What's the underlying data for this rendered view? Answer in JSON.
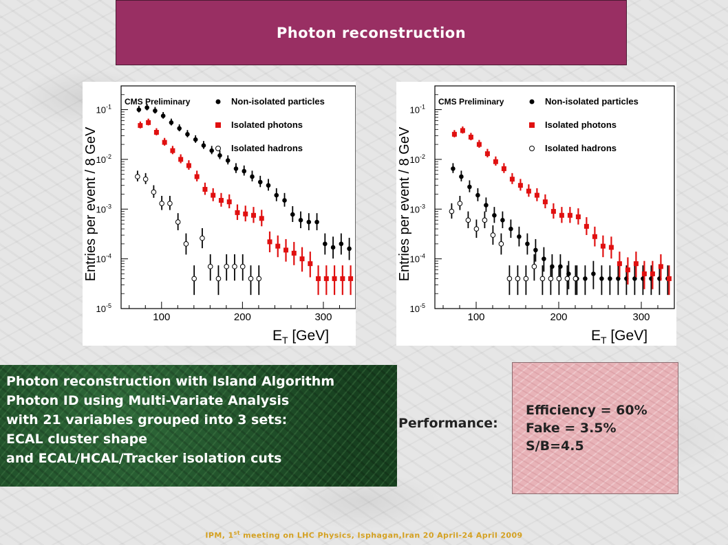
{
  "slide": {
    "title": "Photon reconstruction",
    "description_lines": [
      "Photon reconstruction with Island Algorithm",
      "Photon ID using Multi-Variate Analysis",
      "with 21 variables grouped into 3 sets:",
      "ECAL cluster shape",
      "and ECAL/HCAL/Tracker isolation cuts"
    ],
    "performance_label": "Performance:",
    "performance_lines": [
      "Efficiency = 60%",
      "Fake = 3.5%",
      "S/B=4.5"
    ],
    "footer": {
      "before": "IPM, 1",
      "sup": "st",
      "after": " meeting on LHC Physics, Isphagan,Iran 20 April-24 April 2009"
    },
    "colors": {
      "title_bg": "#992f63",
      "desc_bg": "#1f4d2a",
      "perf_bg": "#e8b3b8",
      "footer_text": "#d4a020"
    }
  },
  "chart_data": [
    {
      "type": "scatter",
      "annotation": "CMS Preliminary",
      "xlabel": "E",
      "xlabel_sub": "T",
      "xlabel_unit": " [GeV]",
      "ylabel": "Entries per event / 8 GeV",
      "xlim": [
        50,
        340
      ],
      "ylim": [
        1e-05,
        0.3
      ],
      "yscale": "log",
      "xticks": [
        100,
        200,
        300
      ],
      "yticks": [
        {
          "value": 0.1,
          "label": "10",
          "exp": "-1"
        },
        {
          "value": 0.01,
          "label": "10",
          "exp": "-2"
        },
        {
          "value": 0.001,
          "label": "10",
          "exp": "-3"
        },
        {
          "value": 0.0001,
          "label": "10",
          "exp": "-4"
        },
        {
          "value": 1e-05,
          "label": "10",
          "exp": "-5"
        }
      ],
      "legend_position": "top-right",
      "series": [
        {
          "name": "Non-isolated particles",
          "marker": "filled-circle",
          "color": "#000000",
          "x": [
            72,
            82,
            92,
            102,
            112,
            122,
            132,
            142,
            152,
            162,
            172,
            182,
            192,
            202,
            212,
            222,
            232,
            242,
            252,
            262,
            272,
            282,
            292,
            302,
            312,
            322,
            332
          ],
          "y": [
            0.1,
            0.11,
            0.095,
            0.075,
            0.055,
            0.042,
            0.032,
            0.025,
            0.019,
            0.015,
            0.012,
            0.0095,
            0.0065,
            0.0058,
            0.0045,
            0.0035,
            0.003,
            0.0019,
            0.0015,
            0.00078,
            0.0006,
            0.00055,
            0.00055,
            0.0002,
            0.00017,
            0.0002,
            0.00016
          ]
        },
        {
          "name": "Isolated photons",
          "marker": "filled-square",
          "color": "#e01010",
          "x": [
            72,
            82,
            92,
            102,
            112,
            122,
            132,
            142,
            152,
            162,
            172,
            182,
            192,
            202,
            212,
            222,
            232,
            242,
            252,
            262,
            272,
            282,
            292,
            302,
            312,
            322,
            332
          ],
          "y": [
            0.048,
            0.055,
            0.035,
            0.022,
            0.015,
            0.01,
            0.0075,
            0.0045,
            0.0025,
            0.0019,
            0.0015,
            0.0014,
            0.00085,
            0.0008,
            0.00075,
            0.00065,
            0.00022,
            0.00018,
            0.00015,
            0.00013,
            0.0001,
            8e-05,
            4e-05,
            4e-05,
            4e-05,
            4e-05,
            4e-05
          ]
        },
        {
          "name": "Isolated hadrons",
          "marker": "open-circle",
          "color": "#000000",
          "x": [
            72,
            82,
            92,
            102,
            112,
            122,
            132,
            142,
            152,
            162,
            172,
            182,
            192,
            202,
            212,
            222
          ],
          "y": [
            0.0045,
            0.004,
            0.0022,
            0.0013,
            0.0013,
            0.00055,
            0.0002,
            4e-05,
            0.00026,
            7e-05,
            4e-05,
            7e-05,
            7e-05,
            7e-05,
            4e-05,
            4e-05
          ]
        }
      ]
    },
    {
      "type": "scatter",
      "annotation": "CMS Preliminary",
      "xlabel": "E",
      "xlabel_sub": "T",
      "xlabel_unit": " [GeV]",
      "ylabel": "Entries per event / 8 GeV",
      "xlim": [
        50,
        340
      ],
      "ylim": [
        1e-05,
        0.3
      ],
      "yscale": "log",
      "xticks": [
        100,
        200,
        300
      ],
      "yticks": [
        {
          "value": 0.1,
          "label": "10",
          "exp": "-1"
        },
        {
          "value": 0.01,
          "label": "10",
          "exp": "-2"
        },
        {
          "value": 0.001,
          "label": "10",
          "exp": "-3"
        },
        {
          "value": 0.0001,
          "label": "10",
          "exp": "-4"
        },
        {
          "value": 1e-05,
          "label": "10",
          "exp": "-5"
        }
      ],
      "legend_position": "top-right",
      "series": [
        {
          "name": "Non-isolated particles",
          "marker": "filled-circle",
          "color": "#000000",
          "x": [
            72,
            82,
            92,
            102,
            112,
            122,
            132,
            142,
            152,
            162,
            172,
            182,
            192,
            202,
            212,
            222,
            232,
            242,
            252,
            262,
            272,
            282,
            292,
            302,
            312,
            322,
            332
          ],
          "y": [
            0.0065,
            0.0045,
            0.0028,
            0.0019,
            0.0012,
            0.00075,
            0.0006,
            0.0004,
            0.00028,
            0.0002,
            0.00015,
            0.0001,
            7e-05,
            7e-05,
            5e-05,
            4e-05,
            4e-05,
            5e-05,
            4e-05,
            4e-05,
            4e-05,
            4e-05,
            4e-05,
            4e-05,
            4e-05,
            4e-05,
            4e-05
          ]
        },
        {
          "name": "Isolated photons",
          "marker": "filled-square",
          "color": "#e01010",
          "x": [
            72,
            82,
            92,
            102,
            112,
            122,
            132,
            142,
            152,
            162,
            172,
            182,
            192,
            202,
            212,
            222,
            232,
            242,
            252,
            262,
            272,
            282,
            292,
            302,
            312,
            322,
            332
          ],
          "y": [
            0.032,
            0.038,
            0.028,
            0.02,
            0.013,
            0.009,
            0.0065,
            0.004,
            0.003,
            0.0023,
            0.0019,
            0.0014,
            0.0009,
            0.00075,
            0.00075,
            0.0007,
            0.00045,
            0.00028,
            0.00018,
            0.00017,
            8e-05,
            6e-05,
            8e-05,
            5e-05,
            5e-05,
            7e-05,
            4e-05
          ]
        },
        {
          "name": "Isolated hadrons",
          "marker": "open-circle",
          "color": "#000000",
          "x": [
            72,
            82,
            92,
            102,
            112,
            122,
            132,
            142,
            152,
            162,
            172,
            182,
            192,
            202,
            212,
            222
          ],
          "y": [
            0.0009,
            0.0013,
            0.0006,
            0.0004,
            0.0006,
            0.0003,
            0.0002,
            4e-05,
            4e-05,
            4e-05,
            7e-05,
            4e-05,
            4e-05,
            4e-05,
            4e-05,
            4e-05
          ]
        }
      ]
    }
  ]
}
